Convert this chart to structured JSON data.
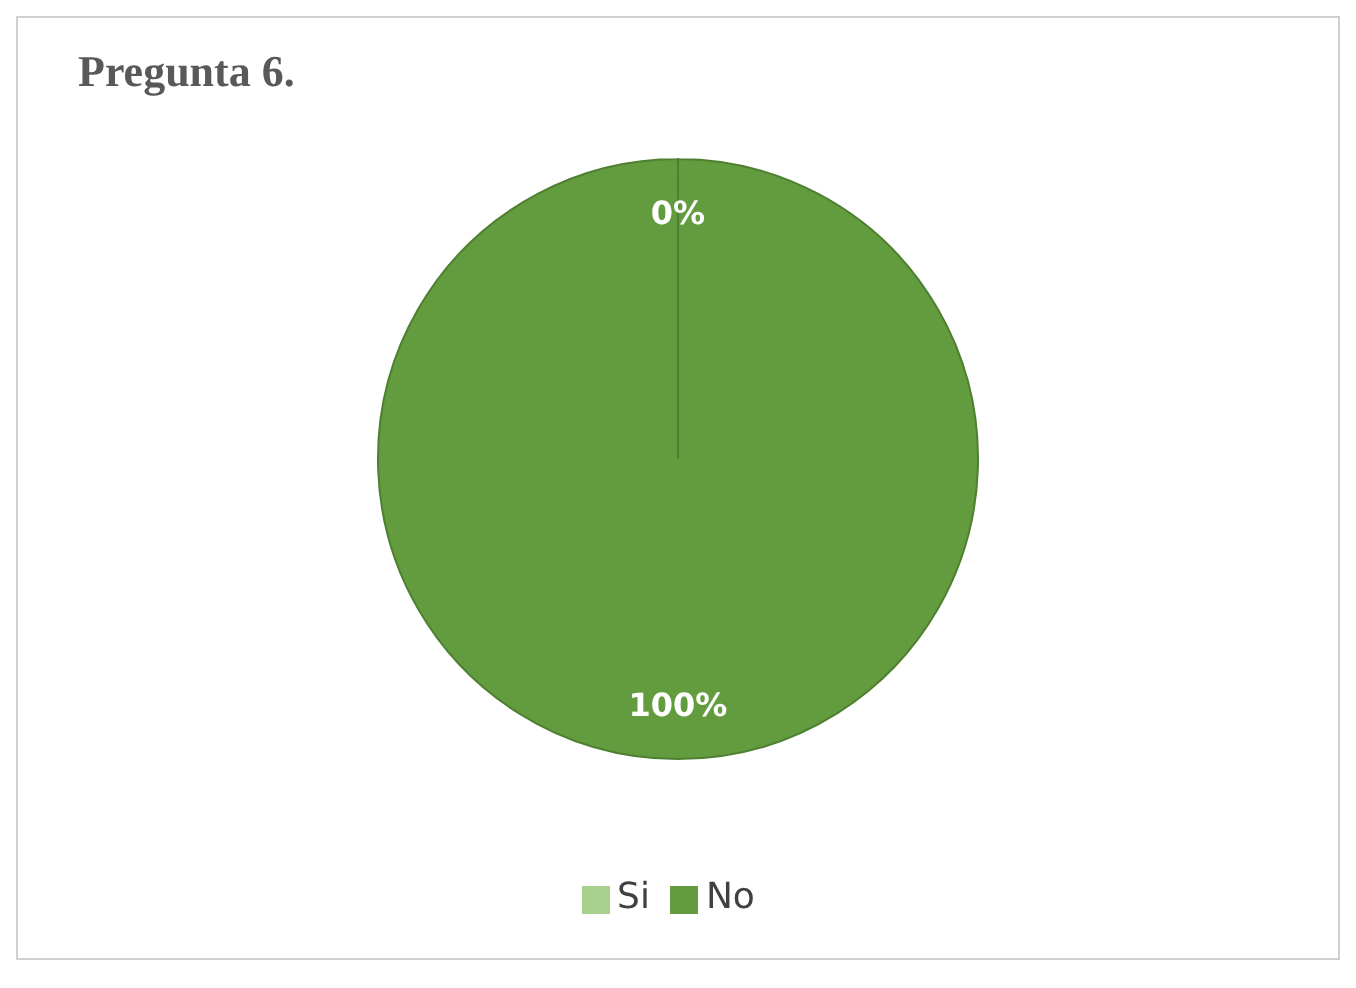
{
  "chart_data": {
    "type": "pie",
    "title": "Pregunta 6.",
    "categories": [
      "Si",
      "No"
    ],
    "values": [
      0,
      100
    ],
    "colors": [
      "#a9d18e",
      "#629c3e"
    ],
    "value_labels": [
      "0%",
      "100%"
    ],
    "legend": "bottom"
  }
}
